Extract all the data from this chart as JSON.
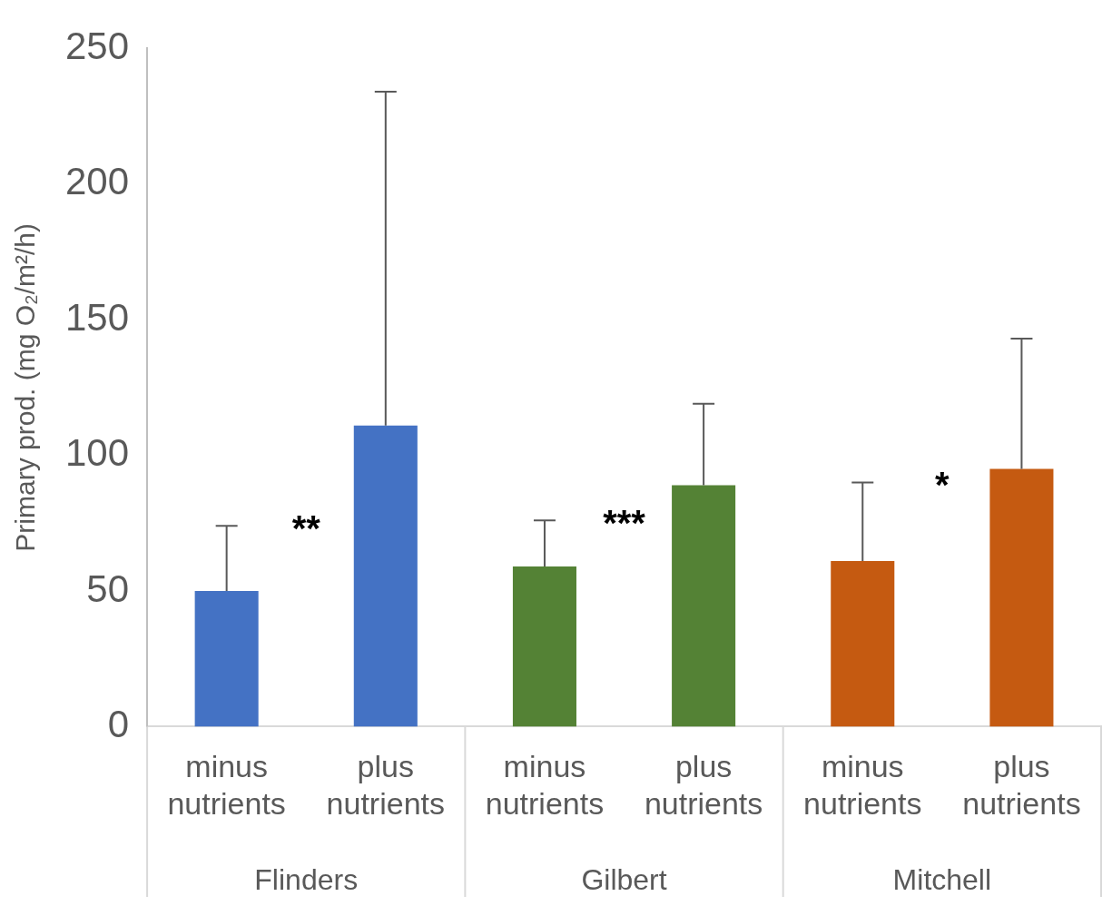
{
  "chart_data": {
    "type": "bar",
    "ylabel": "Primary prod. (mg O₂/m²/h)",
    "categories": [
      "minus nutrients",
      "plus nutrients",
      "minus nutrients",
      "plus nutrients",
      "minus nutrients",
      "plus nutrients"
    ],
    "values": [
      50,
      111,
      59,
      89,
      61,
      95
    ],
    "colors": [
      "#4472c4",
      "#4472c4",
      "#548235",
      "#548235",
      "#c55a11",
      "#c55a11"
    ],
    "errors": [
      [
        50,
        74
      ],
      [
        111,
        234
      ],
      [
        59,
        76
      ],
      [
        89,
        119
      ],
      [
        61,
        90
      ],
      [
        95,
        143
      ]
    ],
    "ylim": [
      0,
      250
    ],
    "yticks": [
      0,
      50,
      100,
      150,
      200,
      250
    ],
    "grid": false,
    "legend": false,
    "annotations": [
      "**",
      "***",
      "*",
      "Flinders",
      "Gilbert",
      "Mitchell"
    ]
  }
}
